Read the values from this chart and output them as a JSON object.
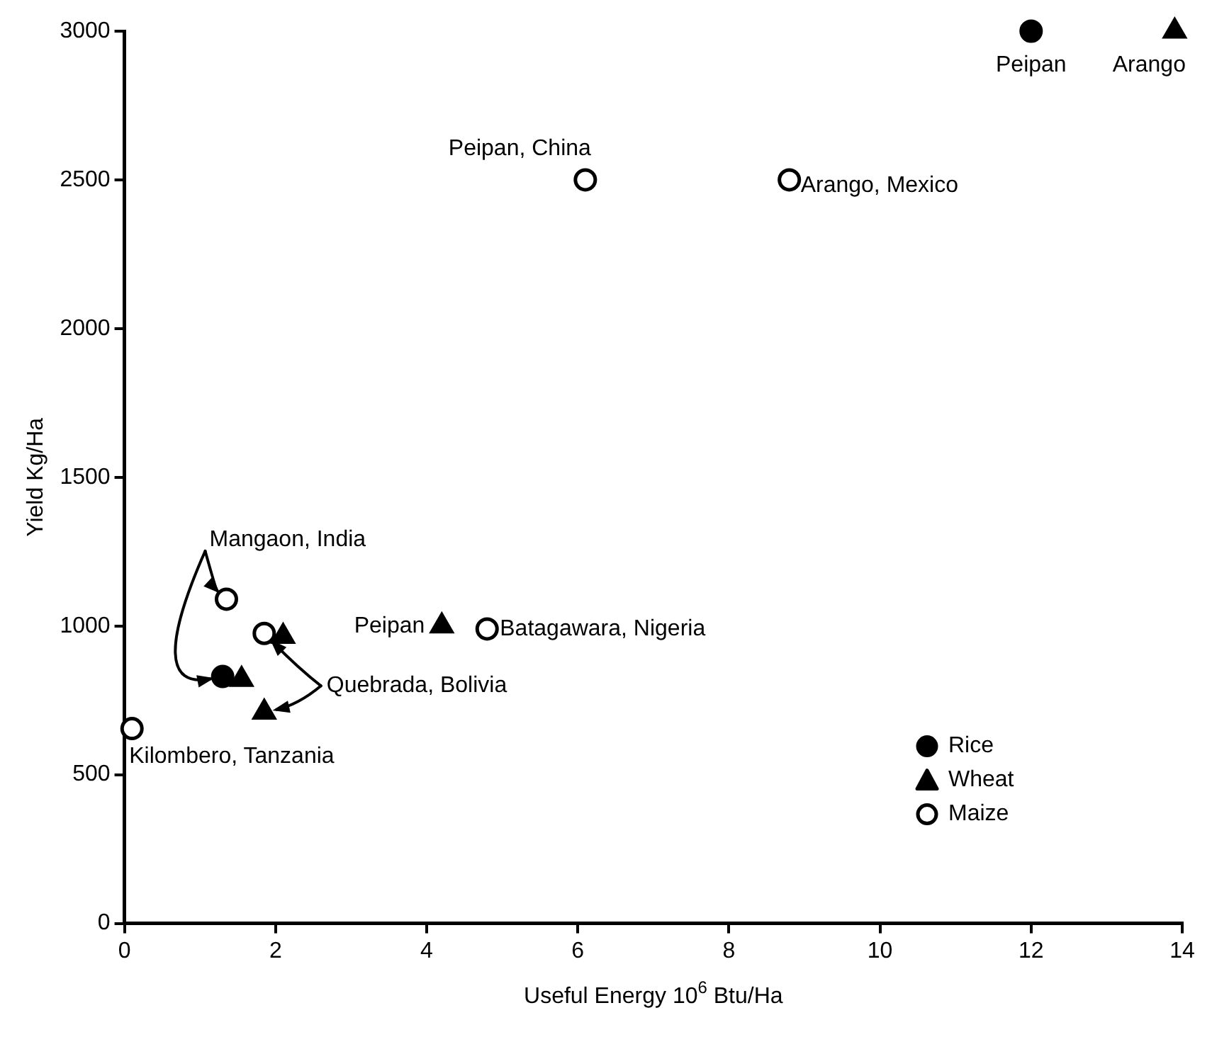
{
  "chart_data": {
    "type": "scatter",
    "xlabel": "Useful Energy 10$^{6}$ Btu/Ha",
    "ylabel": "Yield Kg/Ha",
    "xlim": [
      0,
      14
    ],
    "xticks": [
      0,
      2,
      4,
      6,
      8,
      10,
      12,
      14
    ],
    "ylim": [
      0,
      3000
    ],
    "yticks": [
      0,
      500,
      1000,
      1500,
      2000,
      2500,
      3000
    ],
    "grid": false,
    "legend": "bottom right",
    "series": [
      {
        "name": "Rice",
        "color": "#000000",
        "marker": "circle",
        "x": [
          12,
          1.3
        ],
        "values": [
          3000,
          830
        ]
      },
      {
        "name": "Wheat",
        "color": "#000000",
        "marker": "triangle",
        "x": [
          13.9,
          1.55,
          2.1,
          1.85,
          4.2
        ],
        "values": [
          3000,
          820,
          965,
          710,
          1000
        ]
      },
      {
        "name": "Maize",
        "color": "#ffffff",
        "marker": "circle",
        "x": [
          6.1,
          8.8,
          1.35,
          1.85,
          4.8,
          0.1
        ],
        "values": [
          2500,
          2500,
          1090,
          975,
          990,
          655
        ]
      }
    ],
    "annotations": [
      {
        "text": "Peipan",
        "x": 12,
        "y": 3000
      },
      {
        "text": "Arango",
        "x": 13.9,
        "y": 3000
      },
      {
        "text": "Peipan, China",
        "x": 6.1,
        "y": 2500
      },
      {
        "text": "Arango, Mexico",
        "x": 8.8,
        "y": 2500
      },
      {
        "text": "Mangaon, India",
        "x": 1.35,
        "y": 1090
      },
      {
        "text": "Quebrada, Bolivia",
        "x": 1.85,
        "y": 975
      },
      {
        "text": "Peipan",
        "x": 4.2,
        "y": 1000
      },
      {
        "text": "Batagawara, Nigeria",
        "x": 4.8,
        "y": 990
      },
      {
        "text": "Kilombero, Tanzania",
        "x": 0.1,
        "y": 655
      }
    ]
  }
}
